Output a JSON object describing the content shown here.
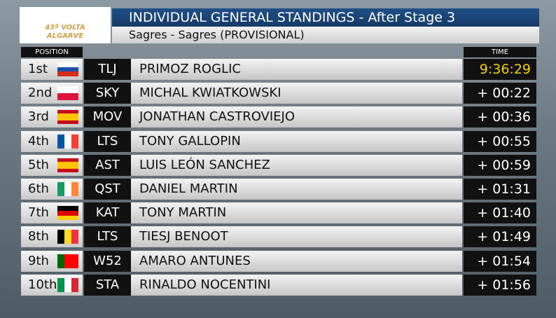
{
  "logo": {
    "line1": "43º VOLTA",
    "line2": "ALGARVE"
  },
  "header": {
    "title": "INDIVIDUAL GENERAL STANDINGS - After Stage 3",
    "subtitle": "Sagres - Sagres (PROVISIONAL)"
  },
  "columns": {
    "position": "POSITION",
    "time": "TIME"
  },
  "table": {
    "rows": [
      [
        "1st",
        "TLJ",
        "PRIMOZ ROGLIC",
        "9:36:29"
      ],
      [
        "2nd",
        "SKY",
        "MICHAL KWIATKOWSKI",
        "+ 00:22"
      ],
      [
        "3rd",
        "MOV",
        "JONATHAN CASTROVIEJO",
        "+ 00:36"
      ],
      [
        "4th",
        "LTS",
        "TONY GALLOPIN",
        "+ 00:55"
      ],
      [
        "5th",
        "AST",
        "LUIS LEÓN SANCHEZ",
        "+ 00:59"
      ],
      [
        "6th",
        "QST",
        "DANIEL MARTIN",
        "+ 01:31"
      ],
      [
        "7th",
        "KAT",
        "TONY MARTIN",
        "+ 01:40"
      ],
      [
        "8th",
        "LTS",
        "TIESJ BENOOT",
        "+ 01:49"
      ],
      [
        "9th",
        "W52",
        "AMARO ANTUNES",
        "+ 01:54"
      ],
      [
        "10th",
        "STA",
        "RINALDO NOCENTINI",
        "+ 01:56"
      ]
    ]
  }
}
